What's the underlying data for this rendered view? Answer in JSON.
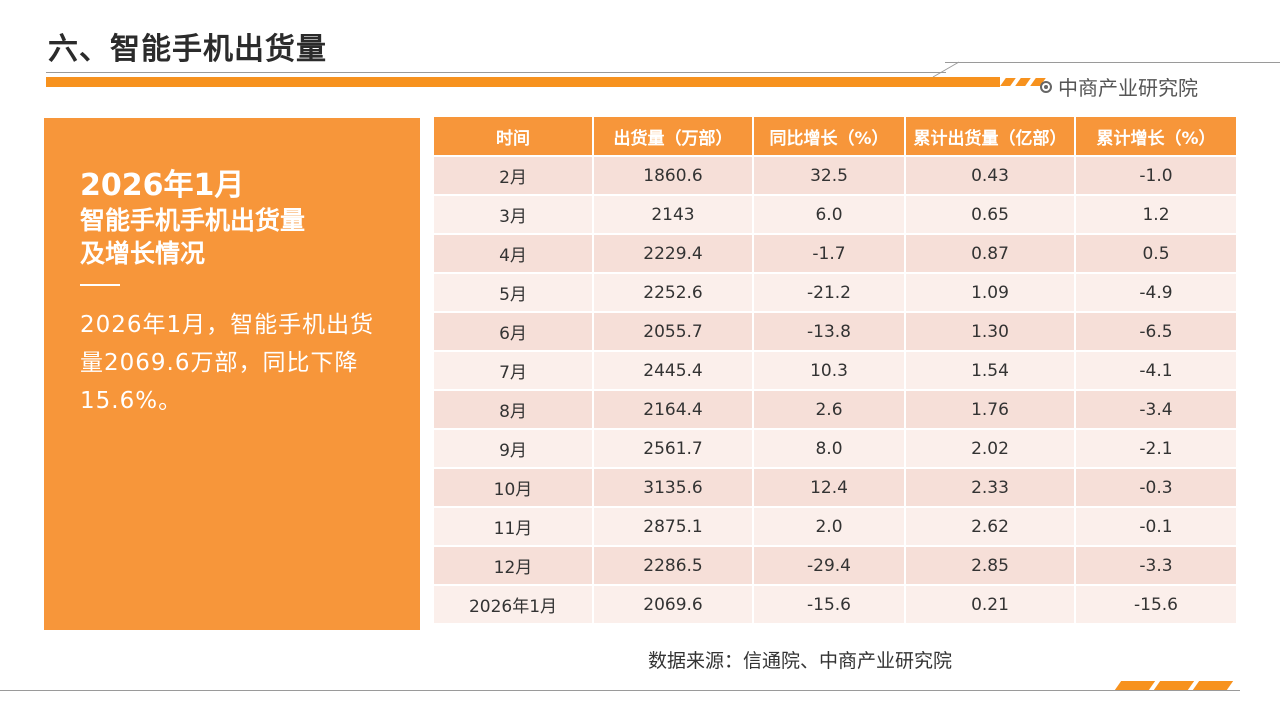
{
  "title": "六、智能手机出货量",
  "brand": {
    "icon": "target-circle-icon",
    "name": "中商产业研究院"
  },
  "summary": {
    "date_heading": "2026年1月",
    "subtitle_line1": "智能手机手机出货量",
    "subtitle_line2": "及增长情况",
    "text": "2026年1月，智能手机出货量2069.6万部，同比下降15.6%。"
  },
  "table": {
    "headers": [
      "时间",
      "出货量（万部）",
      "同比增长（%）",
      "累计出货量（亿部）",
      "累计增长（%）"
    ],
    "rows": [
      [
        "2月",
        "1860.6",
        "32.5",
        "0.43",
        "-1.0"
      ],
      [
        "3月",
        "2143",
        "6.0",
        "0.65",
        "1.2"
      ],
      [
        "4月",
        "2229.4",
        "-1.7",
        "0.87",
        "0.5"
      ],
      [
        "5月",
        "2252.6",
        "-21.2",
        "1.09",
        "-4.9"
      ],
      [
        "6月",
        "2055.7",
        "-13.8",
        "1.30",
        "-6.5"
      ],
      [
        "7月",
        "2445.4",
        "10.3",
        "1.54",
        "-4.1"
      ],
      [
        "8月",
        "2164.4",
        "2.6",
        "1.76",
        "-3.4"
      ],
      [
        "9月",
        "2561.7",
        "8.0",
        "2.02",
        "-2.1"
      ],
      [
        "10月",
        "3135.6",
        "12.4",
        "2.33",
        "-0.3"
      ],
      [
        "11月",
        "2875.1",
        "2.0",
        "2.62",
        "-0.1"
      ],
      [
        "12月",
        "2286.5",
        "-29.4",
        "2.85",
        "-3.3"
      ],
      [
        "2026年1月",
        "2069.6",
        "-15.6",
        "0.21",
        "-15.6"
      ]
    ]
  },
  "source": "数据来源：信通院、中商产业研究院",
  "colors": {
    "accent": "#f7963a",
    "row_odd": "#f6dfd8",
    "row_even": "#fbefeb"
  }
}
